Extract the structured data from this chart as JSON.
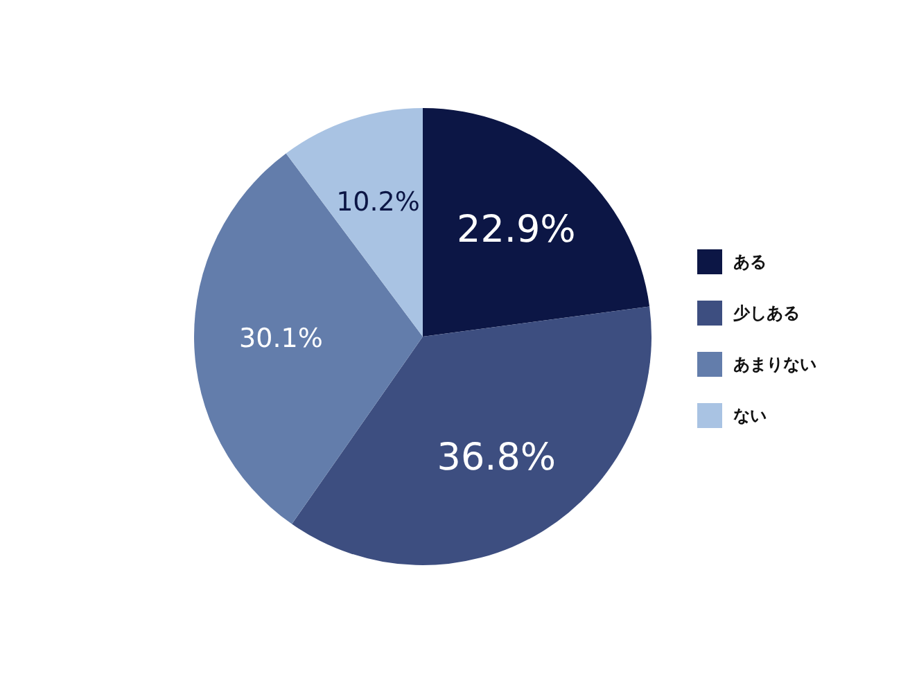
{
  "chart_data": {
    "type": "pie",
    "categories": [
      "ある",
      "少しある",
      "あまりない",
      "ない"
    ],
    "values": [
      22.9,
      36.8,
      30.1,
      10.2
    ],
    "value_labels": [
      "22.9%",
      "36.8%",
      "30.1%",
      "10.2%"
    ],
    "colors": [
      "#0c1645",
      "#3d4e80",
      "#637dab",
      "#a9c3e3"
    ],
    "legend": "right"
  }
}
